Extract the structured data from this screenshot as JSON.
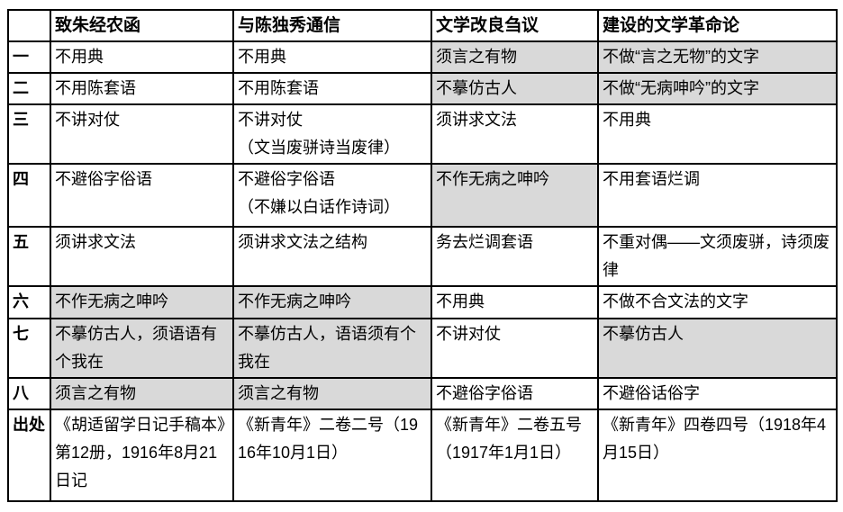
{
  "colors": {
    "table_border": "#000000",
    "shaded_cell_bg": "#d9d9d9",
    "text": "#000000",
    "page_bg": "#ffffff"
  },
  "table": {
    "columns": [
      "",
      "致朱经农函",
      "与陈独秀通信",
      "文学改良刍议",
      "建设的文学革命论"
    ],
    "rows": [
      {
        "label": "一",
        "cells": [
          {
            "text": "不用典",
            "shaded": false
          },
          {
            "text": "不用典",
            "shaded": false
          },
          {
            "text": "须言之有物",
            "shaded": true
          },
          {
            "text": "不做“言之无物”的文字",
            "shaded": true
          }
        ]
      },
      {
        "label": "二",
        "cells": [
          {
            "text": "不用陈套语",
            "shaded": false
          },
          {
            "text": "不用陈套语",
            "shaded": false
          },
          {
            "text": "不摹仿古人",
            "shaded": true
          },
          {
            "text": "不做“无病呻吟”的文字",
            "shaded": true
          }
        ]
      },
      {
        "label": "三",
        "cells": [
          {
            "text": "不讲对仗",
            "shaded": false
          },
          {
            "text": "不讲对仗\n（文当废骈诗当废律）",
            "shaded": false
          },
          {
            "text": "须讲求文法",
            "shaded": false
          },
          {
            "text": "不用典",
            "shaded": false
          }
        ]
      },
      {
        "label": "四",
        "cells": [
          {
            "text": "不避俗字俗语",
            "shaded": false
          },
          {
            "text": "不避俗字俗语\n（不嫌以白话作诗词）",
            "shaded": false
          },
          {
            "text": "不作无病之呻吟",
            "shaded": true
          },
          {
            "text": "不用套语烂调",
            "shaded": false
          }
        ]
      },
      {
        "label": "五",
        "cells": [
          {
            "text": "须讲求文法",
            "shaded": false
          },
          {
            "text": "须讲求文法之结构",
            "shaded": false
          },
          {
            "text": "务去烂调套语",
            "shaded": false
          },
          {
            "text": "不重对偶——文须废骈，诗须废律",
            "shaded": false
          }
        ]
      },
      {
        "label": "六",
        "cells": [
          {
            "text": "不作无病之呻吟",
            "shaded": true
          },
          {
            "text": "不作无病之呻吟",
            "shaded": true
          },
          {
            "text": "不用典",
            "shaded": false
          },
          {
            "text": "不做不合文法的文字",
            "shaded": false
          }
        ]
      },
      {
        "label": "七",
        "cells": [
          {
            "text": "不摹仿古人，须语语有个我在",
            "shaded": true
          },
          {
            "text": "不摹仿古人，语语须有个我在",
            "shaded": true
          },
          {
            "text": "不讲对仗",
            "shaded": false
          },
          {
            "text": "不摹仿古人",
            "shaded": true
          }
        ]
      },
      {
        "label": "八",
        "cells": [
          {
            "text": "须言之有物",
            "shaded": true
          },
          {
            "text": "须言之有物",
            "shaded": true
          },
          {
            "text": "不避俗字俗语",
            "shaded": false
          },
          {
            "text": "不避俗话俗字",
            "shaded": false
          }
        ]
      },
      {
        "label": "出处",
        "cells": [
          {
            "text": "《胡适留学日记手稿本》第12册，1916年8月21日记",
            "shaded": false
          },
          {
            "text": "《新青年》二卷二号（1916年10月1日）",
            "shaded": false
          },
          {
            "text": "《新青年》二卷五号（1917年1月1日）",
            "shaded": false
          },
          {
            "text": "《新青年》四卷四号（1918年4月15日）",
            "shaded": false
          }
        ]
      }
    ]
  }
}
